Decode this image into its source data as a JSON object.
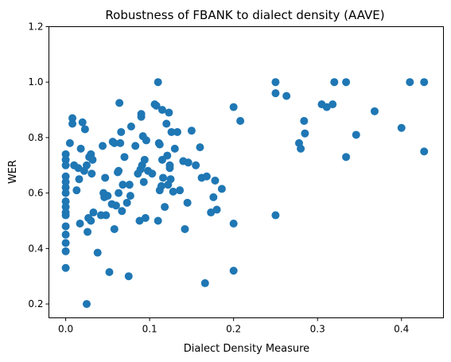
{
  "chart_data": {
    "type": "scatter",
    "title": "Robustness of FBANK to dialect density (AAVE)",
    "xlabel": "Dialect Density Measure",
    "ylabel": "WER",
    "xlim": [
      -0.02,
      0.45
    ],
    "ylim": [
      0.15,
      1.2
    ],
    "xticks": [
      0.0,
      0.1,
      0.2,
      0.3,
      0.4
    ],
    "xtick_labels": [
      "0.0",
      "0.1",
      "0.2",
      "0.3",
      "0.4"
    ],
    "yticks": [
      0.2,
      0.4,
      0.6,
      0.8,
      1.0,
      1.2
    ],
    "ytick_labels": [
      "0.2",
      "0.4",
      "0.6",
      "0.8",
      "1.0",
      "1.2"
    ],
    "grid": false,
    "series": [
      {
        "color": "#1f77b4",
        "points": [
          [
            0.0,
            0.74
          ],
          [
            0.0,
            0.72
          ],
          [
            0.0,
            0.7
          ],
          [
            0.0,
            0.66
          ],
          [
            0.0,
            0.64
          ],
          [
            0.0,
            0.62
          ],
          [
            0.0,
            0.6
          ],
          [
            0.0,
            0.57
          ],
          [
            0.0,
            0.55
          ],
          [
            0.0,
            0.53
          ],
          [
            0.0,
            0.52
          ],
          [
            0.0,
            0.48
          ],
          [
            0.0,
            0.45
          ],
          [
            0.0,
            0.42
          ],
          [
            0.0,
            0.39
          ],
          [
            0.0,
            0.33
          ],
          [
            0.005,
            0.78
          ],
          [
            0.008,
            0.87
          ],
          [
            0.008,
            0.85
          ],
          [
            0.01,
            0.7
          ],
          [
            0.013,
            0.61
          ],
          [
            0.015,
            0.69
          ],
          [
            0.016,
            0.65
          ],
          [
            0.017,
            0.49
          ],
          [
            0.018,
            0.76
          ],
          [
            0.02,
            0.855
          ],
          [
            0.022,
            0.68
          ],
          [
            0.023,
            0.83
          ],
          [
            0.025,
            0.7
          ],
          [
            0.025,
            0.2
          ],
          [
            0.026,
            0.46
          ],
          [
            0.027,
            0.51
          ],
          [
            0.028,
            0.73
          ],
          [
            0.03,
            0.74
          ],
          [
            0.03,
            0.5
          ],
          [
            0.031,
            0.67
          ],
          [
            0.032,
            0.72
          ],
          [
            0.033,
            0.53
          ],
          [
            0.038,
            0.385
          ],
          [
            0.042,
            0.52
          ],
          [
            0.044,
            0.77
          ],
          [
            0.045,
            0.6
          ],
          [
            0.046,
            0.585
          ],
          [
            0.047,
            0.655
          ],
          [
            0.048,
            0.52
          ],
          [
            0.05,
            0.59
          ],
          [
            0.052,
            0.315
          ],
          [
            0.055,
            0.56
          ],
          [
            0.056,
            0.785
          ],
          [
            0.058,
            0.78
          ],
          [
            0.058,
            0.47
          ],
          [
            0.06,
            0.555
          ],
          [
            0.062,
            0.675
          ],
          [
            0.063,
            0.68
          ],
          [
            0.063,
            0.6
          ],
          [
            0.064,
            0.925
          ],
          [
            0.065,
            0.78
          ],
          [
            0.066,
            0.82
          ],
          [
            0.067,
            0.535
          ],
          [
            0.068,
            0.63
          ],
          [
            0.07,
            0.73
          ],
          [
            0.073,
            0.565
          ],
          [
            0.075,
            0.3
          ],
          [
            0.076,
            0.63
          ],
          [
            0.077,
            0.59
          ],
          [
            0.078,
            0.84
          ],
          [
            0.083,
            0.77
          ],
          [
            0.086,
            0.67
          ],
          [
            0.088,
            0.5
          ],
          [
            0.089,
            0.685
          ],
          [
            0.09,
            0.885
          ],
          [
            0.09,
            0.875
          ],
          [
            0.091,
            0.7
          ],
          [
            0.092,
            0.805
          ],
          [
            0.093,
            0.64
          ],
          [
            0.094,
            0.72
          ],
          [
            0.095,
            0.51
          ],
          [
            0.096,
            0.79
          ],
          [
            0.098,
            0.68
          ],
          [
            0.103,
            0.67
          ],
          [
            0.106,
            0.92
          ],
          [
            0.108,
            0.915
          ],
          [
            0.11,
            1.0
          ],
          [
            0.11,
            0.5
          ],
          [
            0.111,
            0.78
          ],
          [
            0.112,
            0.775
          ],
          [
            0.112,
            0.61
          ],
          [
            0.114,
            0.625
          ],
          [
            0.115,
            0.9
          ],
          [
            0.115,
            0.72
          ],
          [
            0.116,
            0.655
          ],
          [
            0.118,
            0.55
          ],
          [
            0.12,
            0.85
          ],
          [
            0.121,
            0.735
          ],
          [
            0.122,
            0.63
          ],
          [
            0.123,
            0.89
          ],
          [
            0.124,
            0.7
          ],
          [
            0.124,
            0.69
          ],
          [
            0.125,
            0.65
          ],
          [
            0.126,
            0.82
          ],
          [
            0.128,
            0.605
          ],
          [
            0.13,
            0.76
          ],
          [
            0.133,
            0.82
          ],
          [
            0.136,
            0.61
          ],
          [
            0.14,
            0.715
          ],
          [
            0.142,
            0.47
          ],
          [
            0.145,
            0.565
          ],
          [
            0.146,
            0.71
          ],
          [
            0.15,
            0.825
          ],
          [
            0.155,
            0.7
          ],
          [
            0.16,
            0.765
          ],
          [
            0.162,
            0.655
          ],
          [
            0.166,
            0.275
          ],
          [
            0.168,
            0.66
          ],
          [
            0.173,
            0.53
          ],
          [
            0.176,
            0.585
          ],
          [
            0.178,
            0.645
          ],
          [
            0.18,
            0.54
          ],
          [
            0.186,
            0.615
          ],
          [
            0.2,
            0.91
          ],
          [
            0.2,
            0.49
          ],
          [
            0.2,
            0.32
          ],
          [
            0.208,
            0.86
          ],
          [
            0.25,
            1.0
          ],
          [
            0.25,
            0.96
          ],
          [
            0.25,
            0.52
          ],
          [
            0.263,
            0.95
          ],
          [
            0.278,
            0.78
          ],
          [
            0.28,
            0.76
          ],
          [
            0.284,
            0.86
          ],
          [
            0.285,
            0.815
          ],
          [
            0.305,
            0.92
          ],
          [
            0.311,
            0.91
          ],
          [
            0.318,
            0.92
          ],
          [
            0.32,
            1.0
          ],
          [
            0.334,
            1.0
          ],
          [
            0.334,
            0.73
          ],
          [
            0.346,
            0.81
          ],
          [
            0.368,
            0.895
          ],
          [
            0.4,
            0.835
          ],
          [
            0.41,
            1.0
          ],
          [
            0.427,
            1.0
          ],
          [
            0.427,
            0.75
          ]
        ]
      }
    ]
  }
}
